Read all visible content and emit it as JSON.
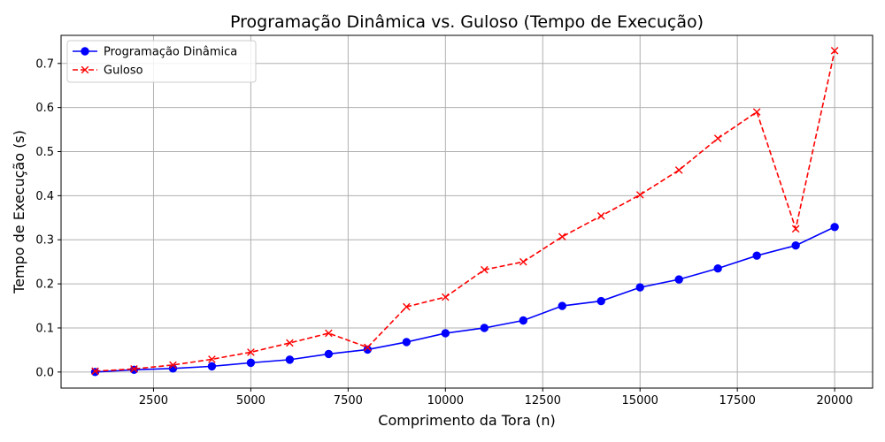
{
  "chart_data": {
    "type": "line",
    "title": "Programação Dinâmica vs. Guloso (Tempo de Execução)",
    "xlabel": "Comprimento da Tora (n)",
    "ylabel": "Tempo de Execução (s)",
    "xlim": [
      125,
      20975
    ],
    "ylim": [
      -0.0364,
      0.7637
    ],
    "xticks": [
      2500,
      5000,
      7500,
      10000,
      12500,
      15000,
      17500,
      20000
    ],
    "xtick_labels": [
      "2500",
      "5000",
      "7500",
      "10000",
      "12500",
      "15000",
      "17500",
      "20000"
    ],
    "yticks": [
      0.0,
      0.1,
      0.2,
      0.3,
      0.4,
      0.5,
      0.6,
      0.7
    ],
    "ytick_labels": [
      "0.0",
      "0.1",
      "0.2",
      "0.3",
      "0.4",
      "0.5",
      "0.6",
      "0.7"
    ],
    "grid": true,
    "legend_position": "upper-left",
    "x": [
      1000,
      2000,
      3000,
      4000,
      5000,
      6000,
      7000,
      8000,
      9000,
      10000,
      11000,
      12000,
      13000,
      14000,
      15000,
      16000,
      17000,
      18000,
      19000,
      20000
    ],
    "series": [
      {
        "name": "Programação Dinâmica",
        "color": "#0000ff",
        "line_style": "solid",
        "marker": "circle",
        "values": [
          0.0,
          0.005,
          0.008,
          0.013,
          0.021,
          0.028,
          0.041,
          0.051,
          0.068,
          0.088,
          0.1,
          0.117,
          0.15,
          0.161,
          0.192,
          0.21,
          0.235,
          0.264,
          0.287,
          0.329
        ]
      },
      {
        "name": "Guloso",
        "color": "#ff0000",
        "line_style": "dashed",
        "marker": "x",
        "values": [
          0.002,
          0.007,
          0.016,
          0.029,
          0.045,
          0.066,
          0.088,
          0.056,
          0.148,
          0.17,
          0.232,
          0.25,
          0.307,
          0.354,
          0.402,
          0.458,
          0.53,
          0.59,
          0.325,
          0.729
        ]
      }
    ]
  }
}
